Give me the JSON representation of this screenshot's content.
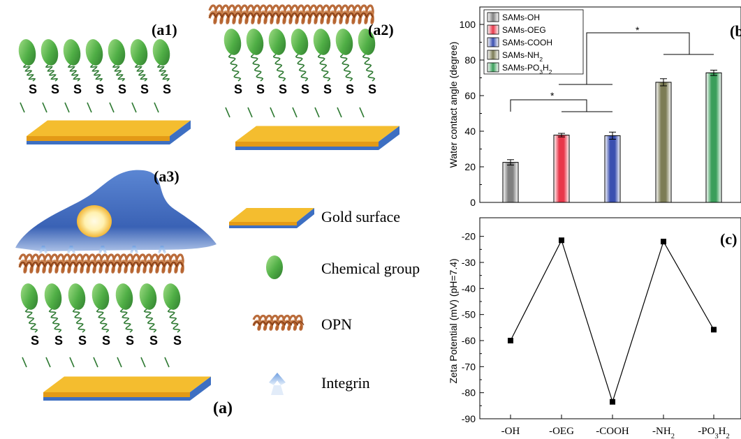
{
  "panel_labels": {
    "a1": "(a1)",
    "a2": "(a2)",
    "a3": "(a3)",
    "a": "(a)",
    "b": "(b)",
    "c": "(c)"
  },
  "sulfur_label": "S",
  "legend_schematic": [
    {
      "icon": "gold-surface-icon",
      "label": "Gold surface"
    },
    {
      "icon": "chemical-group-icon",
      "label": "Chemical group"
    },
    {
      "icon": "opn-icon",
      "label": "OPN"
    },
    {
      "icon": "integrin-icon",
      "label": "Integrin"
    }
  ],
  "colors": {
    "gold": "#f4bd2f",
    "gold_side": "#e39a16",
    "substrate_blue": "#3d6fc2",
    "chemical_green": "#3f9a3a",
    "opn_brown": "#b4602a",
    "cell_blue": "#3f6cbf"
  },
  "chart_data": [
    {
      "type": "bar",
      "categories": [
        "SAMs-OH",
        "SAMs-OEG",
        "SAMs-COOH",
        "SAMs-NH2",
        "SAMs-PO3H2"
      ],
      "values": [
        22.5,
        37.8,
        37.5,
        67.5,
        72.8
      ],
      "errors": [
        1.5,
        1.0,
        2.0,
        2.0,
        1.5
      ],
      "ylabel": "Water contact angle (degree)",
      "ylim": [
        0,
        100
      ],
      "yticks": [
        0,
        20,
        40,
        60,
        80,
        100
      ],
      "legend": {
        "position": "top-left",
        "entries": [
          {
            "base": "SAMs-OH",
            "sub": "",
            "tail": "",
            "color": "#808080"
          },
          {
            "base": "SAMs-OEG",
            "sub": "",
            "tail": "",
            "color": "#e8374a"
          },
          {
            "base": "SAMs-COOH",
            "sub": "",
            "tail": "",
            "color": "#3a4fb0"
          },
          {
            "base": "SAMs-NH",
            "sub": "2",
            "tail": "",
            "color": "#7c7c55"
          },
          {
            "base": "SAMs-PO",
            "sub": "3",
            "tail": "H",
            "sub2": "2",
            "color": "#3a9e5a"
          }
        ]
      },
      "significance": [
        "*",
        "*"
      ],
      "grid": false
    },
    {
      "type": "line",
      "categories": [
        "-OH",
        "-OEG",
        "-COOH",
        "-NH2",
        "-PO3H2"
      ],
      "x_tick_labels": [
        {
          "base": "-OH",
          "sub": "",
          "tail": "",
          "sub2": ""
        },
        {
          "base": "-OEG",
          "sub": "",
          "tail": "",
          "sub2": ""
        },
        {
          "base": "-COOH",
          "sub": "",
          "tail": "",
          "sub2": ""
        },
        {
          "base": "-NH",
          "sub": "2",
          "tail": "",
          "sub2": ""
        },
        {
          "base": "-PO",
          "sub": "3",
          "tail": "H",
          "sub2": "2"
        }
      ],
      "values": [
        -60,
        -21.5,
        -83.5,
        -22,
        -55.8
      ],
      "ylabel": "Zeta Potential (mV) (pH=7.4)",
      "ylim": [
        -90,
        -15
      ],
      "yticks": [
        -90,
        -80,
        -70,
        -60,
        -50,
        -40,
        -30,
        -20
      ],
      "marker": "square",
      "grid": false
    }
  ]
}
